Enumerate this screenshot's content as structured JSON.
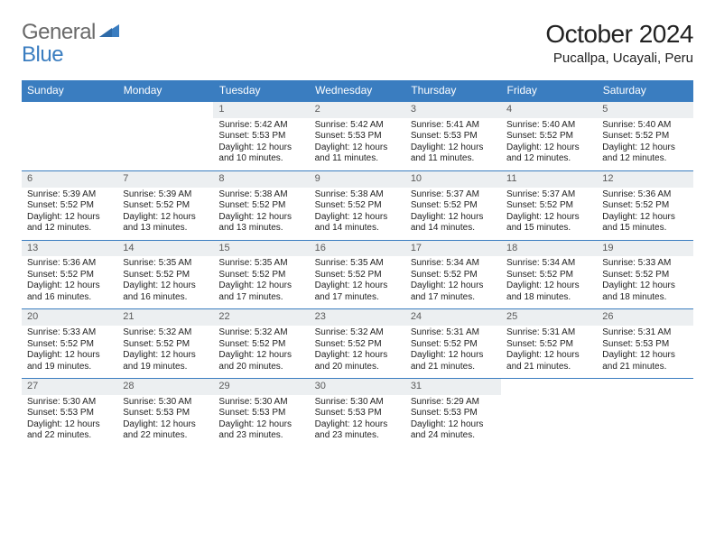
{
  "brand": {
    "word1": "General",
    "word2": "Blue"
  },
  "title": "October 2024",
  "location": "Pucallpa, Ucayali, Peru",
  "colors": {
    "header_bg": "#3a7dc0",
    "header_fg": "#ffffff",
    "daynum_bg": "#eceff1",
    "border": "#3a7dc0",
    "text": "#222222",
    "logo_gray": "#6a6a6a",
    "logo_blue": "#3a7dc0"
  },
  "typography": {
    "title_fontsize": 28,
    "location_fontsize": 15,
    "header_fontsize": 12,
    "cell_fontsize": 10
  },
  "day_headers": [
    "Sunday",
    "Monday",
    "Tuesday",
    "Wednesday",
    "Thursday",
    "Friday",
    "Saturday"
  ],
  "weeks": [
    [
      null,
      null,
      {
        "n": "1",
        "sr": "Sunrise: 5:42 AM",
        "ss": "Sunset: 5:53 PM",
        "dl": "Daylight: 12 hours and 10 minutes."
      },
      {
        "n": "2",
        "sr": "Sunrise: 5:42 AM",
        "ss": "Sunset: 5:53 PM",
        "dl": "Daylight: 12 hours and 11 minutes."
      },
      {
        "n": "3",
        "sr": "Sunrise: 5:41 AM",
        "ss": "Sunset: 5:53 PM",
        "dl": "Daylight: 12 hours and 11 minutes."
      },
      {
        "n": "4",
        "sr": "Sunrise: 5:40 AM",
        "ss": "Sunset: 5:52 PM",
        "dl": "Daylight: 12 hours and 12 minutes."
      },
      {
        "n": "5",
        "sr": "Sunrise: 5:40 AM",
        "ss": "Sunset: 5:52 PM",
        "dl": "Daylight: 12 hours and 12 minutes."
      }
    ],
    [
      {
        "n": "6",
        "sr": "Sunrise: 5:39 AM",
        "ss": "Sunset: 5:52 PM",
        "dl": "Daylight: 12 hours and 12 minutes."
      },
      {
        "n": "7",
        "sr": "Sunrise: 5:39 AM",
        "ss": "Sunset: 5:52 PM",
        "dl": "Daylight: 12 hours and 13 minutes."
      },
      {
        "n": "8",
        "sr": "Sunrise: 5:38 AM",
        "ss": "Sunset: 5:52 PM",
        "dl": "Daylight: 12 hours and 13 minutes."
      },
      {
        "n": "9",
        "sr": "Sunrise: 5:38 AM",
        "ss": "Sunset: 5:52 PM",
        "dl": "Daylight: 12 hours and 14 minutes."
      },
      {
        "n": "10",
        "sr": "Sunrise: 5:37 AM",
        "ss": "Sunset: 5:52 PM",
        "dl": "Daylight: 12 hours and 14 minutes."
      },
      {
        "n": "11",
        "sr": "Sunrise: 5:37 AM",
        "ss": "Sunset: 5:52 PM",
        "dl": "Daylight: 12 hours and 15 minutes."
      },
      {
        "n": "12",
        "sr": "Sunrise: 5:36 AM",
        "ss": "Sunset: 5:52 PM",
        "dl": "Daylight: 12 hours and 15 minutes."
      }
    ],
    [
      {
        "n": "13",
        "sr": "Sunrise: 5:36 AM",
        "ss": "Sunset: 5:52 PM",
        "dl": "Daylight: 12 hours and 16 minutes."
      },
      {
        "n": "14",
        "sr": "Sunrise: 5:35 AM",
        "ss": "Sunset: 5:52 PM",
        "dl": "Daylight: 12 hours and 16 minutes."
      },
      {
        "n": "15",
        "sr": "Sunrise: 5:35 AM",
        "ss": "Sunset: 5:52 PM",
        "dl": "Daylight: 12 hours and 17 minutes."
      },
      {
        "n": "16",
        "sr": "Sunrise: 5:35 AM",
        "ss": "Sunset: 5:52 PM",
        "dl": "Daylight: 12 hours and 17 minutes."
      },
      {
        "n": "17",
        "sr": "Sunrise: 5:34 AM",
        "ss": "Sunset: 5:52 PM",
        "dl": "Daylight: 12 hours and 17 minutes."
      },
      {
        "n": "18",
        "sr": "Sunrise: 5:34 AM",
        "ss": "Sunset: 5:52 PM",
        "dl": "Daylight: 12 hours and 18 minutes."
      },
      {
        "n": "19",
        "sr": "Sunrise: 5:33 AM",
        "ss": "Sunset: 5:52 PM",
        "dl": "Daylight: 12 hours and 18 minutes."
      }
    ],
    [
      {
        "n": "20",
        "sr": "Sunrise: 5:33 AM",
        "ss": "Sunset: 5:52 PM",
        "dl": "Daylight: 12 hours and 19 minutes."
      },
      {
        "n": "21",
        "sr": "Sunrise: 5:32 AM",
        "ss": "Sunset: 5:52 PM",
        "dl": "Daylight: 12 hours and 19 minutes."
      },
      {
        "n": "22",
        "sr": "Sunrise: 5:32 AM",
        "ss": "Sunset: 5:52 PM",
        "dl": "Daylight: 12 hours and 20 minutes."
      },
      {
        "n": "23",
        "sr": "Sunrise: 5:32 AM",
        "ss": "Sunset: 5:52 PM",
        "dl": "Daylight: 12 hours and 20 minutes."
      },
      {
        "n": "24",
        "sr": "Sunrise: 5:31 AM",
        "ss": "Sunset: 5:52 PM",
        "dl": "Daylight: 12 hours and 21 minutes."
      },
      {
        "n": "25",
        "sr": "Sunrise: 5:31 AM",
        "ss": "Sunset: 5:52 PM",
        "dl": "Daylight: 12 hours and 21 minutes."
      },
      {
        "n": "26",
        "sr": "Sunrise: 5:31 AM",
        "ss": "Sunset: 5:53 PM",
        "dl": "Daylight: 12 hours and 21 minutes."
      }
    ],
    [
      {
        "n": "27",
        "sr": "Sunrise: 5:30 AM",
        "ss": "Sunset: 5:53 PM",
        "dl": "Daylight: 12 hours and 22 minutes."
      },
      {
        "n": "28",
        "sr": "Sunrise: 5:30 AM",
        "ss": "Sunset: 5:53 PM",
        "dl": "Daylight: 12 hours and 22 minutes."
      },
      {
        "n": "29",
        "sr": "Sunrise: 5:30 AM",
        "ss": "Sunset: 5:53 PM",
        "dl": "Daylight: 12 hours and 23 minutes."
      },
      {
        "n": "30",
        "sr": "Sunrise: 5:30 AM",
        "ss": "Sunset: 5:53 PM",
        "dl": "Daylight: 12 hours and 23 minutes."
      },
      {
        "n": "31",
        "sr": "Sunrise: 5:29 AM",
        "ss": "Sunset: 5:53 PM",
        "dl": "Daylight: 12 hours and 24 minutes."
      },
      null,
      null
    ]
  ]
}
